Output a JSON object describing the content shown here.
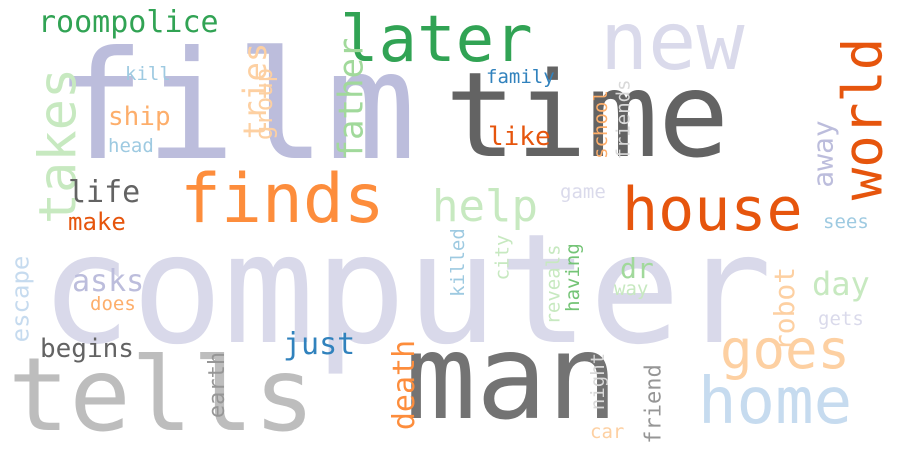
{
  "words": [
    {
      "text": "computer",
      "color": "#d9d9ea"
    },
    {
      "text": "film",
      "color": "#bcbddc"
    },
    {
      "text": "time",
      "color": "#636363"
    },
    {
      "text": "man",
      "color": "#737373"
    },
    {
      "text": "tells",
      "color": "#bdbdbd"
    },
    {
      "text": "new",
      "color": "#dadaeb"
    },
    {
      "text": "later",
      "color": "#31a354"
    },
    {
      "text": "finds",
      "color": "#fd8d3c"
    },
    {
      "text": "house",
      "color": "#e6550d"
    },
    {
      "text": "home",
      "color": "#c6dbef"
    },
    {
      "text": "goes",
      "color": "#fdd0a2"
    },
    {
      "text": "world",
      "color": "#e6550d"
    },
    {
      "text": "takes",
      "color": "#c7e9c0"
    },
    {
      "text": "roompolice",
      "color": "#31a354"
    },
    {
      "text": "help",
      "color": "#c7e9c0"
    },
    {
      "text": "father",
      "color": "#a1d99b"
    },
    {
      "text": "tries",
      "color": "#fdd0a2"
    },
    {
      "text": "group",
      "color": "#fdd0a2"
    },
    {
      "text": "life",
      "color": "#636363"
    },
    {
      "text": "make",
      "color": "#e6550d"
    },
    {
      "text": "ship",
      "color": "#fdae6b"
    },
    {
      "text": "kill",
      "color": "#9ecae1"
    },
    {
      "text": "head",
      "color": "#9ecae1"
    },
    {
      "text": "family",
      "color": "#3182bd"
    },
    {
      "text": "like",
      "color": "#e6550d"
    },
    {
      "text": "school",
      "color": "#fdae6b"
    },
    {
      "text": "friends",
      "color": "#d9d9d9"
    },
    {
      "text": "away",
      "color": "#bcbddc"
    },
    {
      "text": "game",
      "color": "#dadaeb"
    },
    {
      "text": "sees",
      "color": "#9ecae1"
    },
    {
      "text": "escape",
      "color": "#c6dbef"
    },
    {
      "text": "asks",
      "color": "#bcbddc"
    },
    {
      "text": "does",
      "color": "#fdae6b"
    },
    {
      "text": "begins",
      "color": "#636363"
    },
    {
      "text": "just",
      "color": "#3182bd"
    },
    {
      "text": "earth",
      "color": "#969696"
    },
    {
      "text": "death",
      "color": "#fd8d3c"
    },
    {
      "text": "killed",
      "color": "#9ecae1"
    },
    {
      "text": "city",
      "color": "#c7e9c0"
    },
    {
      "text": "reveals",
      "color": "#c7e9c0"
    },
    {
      "text": "having",
      "color": "#74c476"
    },
    {
      "text": "dr",
      "color": "#a1d99b"
    },
    {
      "text": "way",
      "color": "#c7e9c0"
    },
    {
      "text": "robot",
      "color": "#fdd0a2"
    },
    {
      "text": "day",
      "color": "#c7e9c0"
    },
    {
      "text": "gets",
      "color": "#dadaeb"
    },
    {
      "text": "night",
      "color": "#d9d9d9"
    },
    {
      "text": "friend",
      "color": "#969696"
    },
    {
      "text": "car",
      "color": "#fdd0a2"
    }
  ]
}
